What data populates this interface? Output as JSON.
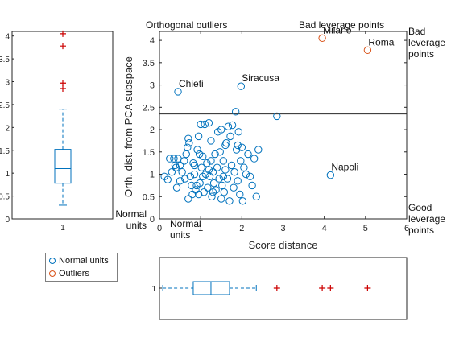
{
  "chart_data": [
    {
      "type": "scatter",
      "xlabel": "Score distance",
      "ylabel": "Orth. dist. from PCA subspace",
      "xlim": [
        0,
        6
      ],
      "ylim": [
        0,
        4.2
      ],
      "xticks": [
        "0",
        "1",
        "2",
        "3",
        "4",
        "5",
        "6"
      ],
      "yticks": [
        "0",
        "0.5",
        "1",
        "1.5",
        "2",
        "2.5",
        "3",
        "3.5",
        "4"
      ],
      "cutoff_x": 3.0,
      "cutoff_y": 2.35,
      "quadrant_labels": {
        "top_left": "Orthogonal outliers",
        "top_center": "Bad leverage points",
        "top_right": [
          "Bad",
          "leverage",
          "points"
        ],
        "bottom_right": [
          "Good",
          "leverage",
          "points"
        ],
        "bottom_left_inner": [
          "Normal",
          "units"
        ],
        "bottom_left_outer": [
          "Normal",
          "units"
        ]
      },
      "legend": {
        "placement": "below-left",
        "items": [
          "Normal units",
          "Outliers"
        ]
      },
      "colors": {
        "normal": "#0072BD",
        "outlier": "#D95319",
        "outlier_marker": "#cc0000",
        "axis": "#262626"
      },
      "normal_points": [
        [
          0.12,
          0.95
        ],
        [
          0.2,
          0.88
        ],
        [
          0.3,
          1.05
        ],
        [
          0.35,
          1.35
        ],
        [
          0.38,
          1.2
        ],
        [
          0.4,
          1.15
        ],
        [
          0.45,
          1.35
        ],
        [
          0.42,
          0.7
        ],
        [
          0.5,
          1.2
        ],
        [
          0.55,
          1.05
        ],
        [
          0.6,
          1.3
        ],
        [
          0.62,
          0.9
        ],
        [
          0.65,
          1.45
        ],
        [
          0.68,
          1.6
        ],
        [
          0.7,
          1.8
        ],
        [
          0.72,
          1.7
        ],
        [
          0.75,
          0.95
        ],
        [
          0.78,
          0.75
        ],
        [
          0.8,
          0.55
        ],
        [
          0.82,
          1.25
        ],
        [
          0.85,
          1.0
        ],
        [
          0.88,
          0.65
        ],
        [
          0.9,
          0.75
        ],
        [
          0.92,
          1.55
        ],
        [
          0.95,
          0.55
        ],
        [
          0.97,
          1.45
        ],
        [
          0.98,
          0.8
        ],
        [
          1.0,
          2.12
        ],
        [
          1.02,
          1.15
        ],
        [
          1.05,
          0.95
        ],
        [
          1.08,
          0.6
        ],
        [
          1.1,
          2.12
        ],
        [
          1.12,
          1.0
        ],
        [
          1.15,
          1.25
        ],
        [
          1.17,
          0.7
        ],
        [
          1.2,
          2.15
        ],
        [
          1.2,
          1.1
        ],
        [
          1.22,
          0.95
        ],
        [
          1.25,
          1.3
        ],
        [
          1.27,
          0.5
        ],
        [
          1.3,
          1.05
        ],
        [
          1.32,
          0.8
        ],
        [
          1.35,
          1.45
        ],
        [
          1.37,
          0.65
        ],
        [
          1.4,
          1.15
        ],
        [
          1.42,
          1.95
        ],
        [
          1.45,
          0.9
        ],
        [
          1.47,
          1.5
        ],
        [
          1.5,
          0.45
        ],
        [
          1.52,
          0.75
        ],
        [
          1.55,
          1.3
        ],
        [
          1.57,
          0.6
        ],
        [
          1.6,
          1.1
        ],
        [
          1.62,
          1.7
        ],
        [
          1.65,
          0.9
        ],
        [
          1.67,
          2.07
        ],
        [
          1.7,
          0.4
        ],
        [
          1.72,
          1.85
        ],
        [
          1.75,
          1.2
        ],
        [
          1.77,
          2.1
        ],
        [
          1.8,
          0.7
        ],
        [
          1.82,
          1.05
        ],
        [
          1.85,
          2.4
        ],
        [
          1.87,
          1.55
        ],
        [
          1.9,
          0.85
        ],
        [
          1.92,
          1.95
        ],
        [
          1.95,
          0.55
        ],
        [
          1.97,
          1.3
        ],
        [
          2.0,
          1.6
        ],
        [
          2.02,
          0.4
        ],
        [
          2.05,
          1.15
        ],
        [
          2.1,
          1.0
        ],
        [
          2.15,
          1.45
        ],
        [
          2.2,
          0.95
        ],
        [
          2.25,
          0.75
        ],
        [
          2.3,
          1.35
        ],
        [
          2.35,
          0.5
        ],
        [
          2.4,
          1.55
        ],
        [
          1.25,
          1.75
        ],
        [
          1.05,
          1.4
        ],
        [
          0.95,
          1.85
        ],
        [
          1.5,
          2.0
        ],
        [
          1.6,
          1.65
        ],
        [
          1.9,
          1.65
        ],
        [
          0.7,
          0.45
        ],
        [
          0.85,
          1.2
        ],
        [
          1.3,
          0.6
        ],
        [
          1.55,
          0.95
        ],
        [
          0.5,
          0.85
        ],
        [
          0.25,
          1.35
        ]
      ],
      "named_points": [
        {
          "label": "Chieti",
          "x": 0.45,
          "y": 2.85,
          "group": "normal"
        },
        {
          "label": "Siracusa",
          "x": 1.98,
          "y": 2.97,
          "group": "normal"
        },
        {
          "label": "",
          "x": 2.85,
          "y": 2.3,
          "group": "normal"
        },
        {
          "label": "Napoli",
          "x": 4.15,
          "y": 0.98,
          "group": "normal"
        },
        {
          "label": "Milano",
          "x": 3.95,
          "y": 4.05,
          "group": "outlier"
        },
        {
          "label": "Roma",
          "x": 5.05,
          "y": 3.78,
          "group": "outlier"
        }
      ]
    },
    {
      "type": "boxplot",
      "orientation": "vertical",
      "variable": "Orth. dist. from PCA subspace",
      "category": "1",
      "ylim": [
        0,
        4.1
      ],
      "yticks": [
        "0",
        "0.5",
        "1",
        "1.5",
        "2",
        "2.5",
        "3",
        "3.5",
        "4"
      ],
      "whisker_low": 0.3,
      "q1": 0.78,
      "median": 1.1,
      "q3": 1.52,
      "whisker_high": 2.4,
      "outliers": [
        2.85,
        2.97,
        3.78,
        4.05
      ]
    },
    {
      "type": "boxplot",
      "orientation": "horizontal",
      "variable": "Score distance",
      "category": "1",
      "xlim": [
        0,
        6
      ],
      "whisker_low": 0.08,
      "q1": 0.82,
      "median": 1.25,
      "q3": 1.7,
      "whisker_high": 2.35,
      "outliers": [
        2.85,
        3.95,
        4.15,
        5.05
      ]
    }
  ]
}
